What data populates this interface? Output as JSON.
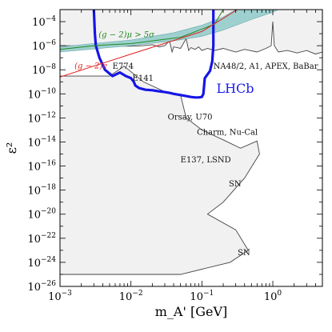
{
  "chart_data": {
    "type": "line",
    "title": "",
    "xlabel": "m_A' [GeV]",
    "ylabel": "ε²",
    "xscale": "log",
    "yscale": "log",
    "xlim": [
      0.001,
      5
    ],
    "ylim": [
      1e-26,
      0.001
    ],
    "x_ticks": [
      {
        "value": 0.001,
        "base": "10",
        "exp": "−3"
      },
      {
        "value": 0.01,
        "base": "10",
        "exp": "−2"
      },
      {
        "value": 0.1,
        "base": "10",
        "exp": "−1"
      },
      {
        "value": 1,
        "base": "10",
        "exp": "0"
      }
    ],
    "y_ticks": [
      {
        "value": 0.0001,
        "base": "10",
        "exp": "−4"
      },
      {
        "value": 1e-06,
        "base": "10",
        "exp": "−6"
      },
      {
        "value": 1e-08,
        "base": "10",
        "exp": "−8"
      },
      {
        "value": 1e-10,
        "base": "10",
        "exp": "−10"
      },
      {
        "value": 1e-12,
        "base": "10",
        "exp": "−12"
      },
      {
        "value": 1e-14,
        "base": "10",
        "exp": "−14"
      },
      {
        "value": 1e-16,
        "base": "10",
        "exp": "−16"
      },
      {
        "value": 1e-18,
        "base": "10",
        "exp": "−18"
      },
      {
        "value": 1e-20,
        "base": "10",
        "exp": "−20"
      },
      {
        "value": 1e-22,
        "base": "10",
        "exp": "−22"
      },
      {
        "value": 1e-24,
        "base": "10",
        "exp": "−24"
      },
      {
        "value": 1e-26,
        "base": "10",
        "exp": "−26"
      }
    ],
    "colors": {
      "excluded_fill": "#f1f1f1",
      "excluded_edge": "#444444",
      "band_fill": "#9ed0d0",
      "lhcb": "#1515e6",
      "g2_mu": "#1f8a1f",
      "g2_e": "#e02020"
    },
    "series": [
      {
        "name": "LHCb",
        "color": "#1515e6",
        "points": [
          [
            0.003,
            0.001
          ],
          [
            0.0031,
            1e-05
          ],
          [
            0.0032,
            1e-06
          ],
          [
            0.0036,
            1e-07
          ],
          [
            0.0043,
            1e-08
          ],
          [
            0.0055,
            3e-09
          ],
          [
            0.007,
            6e-09
          ],
          [
            0.0085,
            3e-09
          ],
          [
            0.01,
            2e-09
          ],
          [
            0.011,
            1e-09
          ],
          [
            0.0115,
            5e-10
          ],
          [
            0.013,
            3e-10
          ],
          [
            0.016,
            2.2e-10
          ],
          [
            0.02,
            2e-10
          ],
          [
            0.025,
            1.6e-10
          ],
          [
            0.03,
            1.4e-10
          ],
          [
            0.035,
            1.2e-10
          ],
          [
            0.04,
            1e-10
          ],
          [
            0.05,
            8e-11
          ],
          [
            0.06,
            6.5e-11
          ],
          [
            0.07,
            5.5e-11
          ],
          [
            0.08,
            5e-11
          ],
          [
            0.09,
            5e-11
          ],
          [
            0.1,
            5.5e-11
          ],
          [
            0.105,
            1e-10
          ],
          [
            0.11,
            2e-09
          ],
          [
            0.13,
            8e-09
          ],
          [
            0.14,
            5e-08
          ],
          [
            0.145,
            1e-06
          ],
          [
            0.145,
            0.001
          ]
        ]
      },
      {
        "name": "(g−2)μ > 5σ",
        "color": "#1f8a1f",
        "points": [
          [
            0.001,
            5e-07
          ],
          [
            0.003,
            1e-06
          ],
          [
            0.01,
            1.5e-06
          ],
          [
            0.05,
            5e-06
          ],
          [
            0.15,
            6e-05
          ],
          [
            0.2,
            0.001
          ]
        ]
      },
      {
        "name": "(g−2)e",
        "color": "#e02020",
        "points": [
          [
            0.001,
            2.5e-09
          ],
          [
            0.01,
            2e-07
          ],
          [
            0.1,
            1.5e-05
          ],
          [
            0.316,
            0.001
          ]
        ]
      }
    ],
    "band": {
      "name": "(g−2)μ band",
      "upper": [
        [
          0.001,
          8e-07
        ],
        [
          0.01,
          3e-06
        ],
        [
          0.04,
          1.2e-05
        ],
        [
          0.1,
          5e-05
        ],
        [
          0.2,
          0.00025
        ],
        [
          0.3,
          0.001
        ]
      ],
      "lower": [
        [
          0.001,
          3e-07
        ],
        [
          0.01,
          1e-06
        ],
        [
          0.04,
          2.5e-06
        ],
        [
          0.1,
          6e-06
        ],
        [
          0.2,
          2e-05
        ],
        [
          0.5,
          0.00015
        ],
        [
          1,
          0.0006
        ],
        [
          1.2,
          0.001
        ]
      ]
    },
    "excluded_upper": [
      [
        0.001,
        1e-06
      ],
      [
        0.01,
        9e-07
      ],
      [
        0.015,
        1e-06
      ],
      [
        0.02,
        1.2e-06
      ],
      [
        0.025,
        8e-07
      ],
      [
        0.03,
        1e-06
      ],
      [
        0.035,
        2.5e-06
      ],
      [
        0.038,
        3e-07
      ],
      [
        0.04,
        8e-07
      ],
      [
        0.05,
        6e-07
      ],
      [
        0.06,
        4e-06
      ],
      [
        0.065,
        4e-07
      ],
      [
        0.07,
        7e-07
      ],
      [
        0.08,
        5e-07
      ],
      [
        0.09,
        8e-07
      ],
      [
        0.1,
        4e-07
      ],
      [
        0.12,
        6e-07
      ],
      [
        0.15,
        4e-07
      ],
      [
        0.2,
        6e-07
      ],
      [
        0.3,
        3e-07
      ],
      [
        0.4,
        5e-07
      ],
      [
        0.6,
        3e-07
      ],
      [
        0.8,
        6e-07
      ],
      [
        0.95,
        1e-06
      ],
      [
        1,
        0.0001
      ],
      [
        1.05,
        1e-06
      ],
      [
        1.2,
        3e-07
      ],
      [
        1.6,
        4e-07
      ],
      [
        2.2,
        2.5e-07
      ],
      [
        3,
        4e-07
      ],
      [
        4,
        2e-07
      ],
      [
        5,
        3e-07
      ]
    ],
    "excluded_lower": [
      [
        0.001,
        3e-09
      ],
      [
        0.005,
        3e-09
      ],
      [
        0.008,
        2e-08
      ],
      [
        0.015,
        1e-09
      ],
      [
        0.03,
        1.5e-10
      ],
      [
        0.05,
        8e-11
      ],
      [
        0.06,
        1e-12
      ],
      [
        0.1,
        1e-13
      ],
      [
        0.2,
        1.5e-14
      ],
      [
        0.35,
        3e-15
      ],
      [
        0.6,
        1.2e-14
      ],
      [
        0.65,
        1e-15
      ],
      [
        0.4,
        1e-17
      ],
      [
        0.2,
        1e-19
      ],
      [
        0.12,
        1e-20
      ],
      [
        0.3,
        5e-22
      ],
      [
        0.45,
        1e-23
      ],
      [
        0.25,
        1e-24
      ],
      [
        0.05,
        1e-25
      ],
      [
        0.005,
        1e-25
      ],
      [
        0.0015,
        1e-25
      ],
      [
        0.001,
        1e-25
      ]
    ],
    "annotations": [
      {
        "text": "(g − 2)μ > 5σ",
        "x": 0.0035,
        "y": 5e-06,
        "color": "#1f8a1f",
        "kind": "curve"
      },
      {
        "text": "(g − 2)e",
        "x": 0.0016,
        "y": 1.3e-08,
        "color": "#e02020",
        "kind": "curve"
      },
      {
        "text": "E774",
        "x": 0.0055,
        "y": 1.2e-08,
        "color": "#111111",
        "kind": "region"
      },
      {
        "text": "E141",
        "x": 0.0105,
        "y": 1.2e-09,
        "color": "#111111",
        "kind": "region"
      },
      {
        "text": "NA48/2, A1, APEX, BaBar",
        "x": 0.145,
        "y": 1.2e-08,
        "color": "#111111",
        "kind": "region"
      },
      {
        "text": "LHCb",
        "x": 0.16,
        "y": 1.2e-10,
        "color": "#1515e6",
        "kind": "lhcb"
      },
      {
        "text": "Orsay, U70",
        "x": 0.033,
        "y": 7e-13,
        "color": "#111111",
        "kind": "region"
      },
      {
        "text": "Charm, Nu-Cal",
        "x": 0.085,
        "y": 4e-14,
        "color": "#111111",
        "kind": "region"
      },
      {
        "text": "E137, LSND",
        "x": 0.05,
        "y": 2e-16,
        "color": "#111111",
        "kind": "region"
      },
      {
        "text": "SN",
        "x": 0.24,
        "y": 2e-18,
        "color": "#111111",
        "kind": "region"
      },
      {
        "text": "SN",
        "x": 0.32,
        "y": 4e-24,
        "color": "#111111",
        "kind": "region"
      }
    ]
  }
}
